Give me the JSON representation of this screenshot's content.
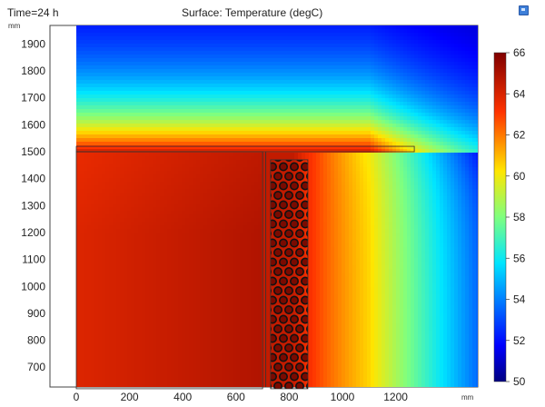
{
  "header": {
    "time_label": "Time=24 h",
    "plot_title": "Surface: Temperature (degC)",
    "x_unit": "mm",
    "y_unit": "mm"
  },
  "icons": {
    "corner": "window-icon"
  },
  "chart_data": {
    "type": "heatmap",
    "title": "Surface: Temperature (degC)",
    "annotation": "Time=24 h",
    "xlabel": "mm",
    "ylabel": "mm",
    "xlim": [
      -80,
      1500
    ],
    "ylim": [
      620,
      1960
    ],
    "x_ticks": [
      0,
      200,
      400,
      600,
      800,
      1000,
      1200
    ],
    "y_ticks": [
      700,
      800,
      900,
      1000,
      1100,
      1200,
      1300,
      1400,
      1500,
      1600,
      1700,
      1800,
      1900
    ],
    "colorbar": {
      "min": 50,
      "max": 66,
      "ticks": [
        50,
        52,
        54,
        56,
        58,
        60,
        62,
        64,
        66
      ],
      "colormap": "rainbow"
    },
    "domain": {
      "x": [
        0,
        1500
      ],
      "y": [
        620,
        1960
      ]
    },
    "regions": [
      {
        "name": "tank",
        "x": [
          0,
          700
        ],
        "y": [
          620,
          1500
        ],
        "temp": 64.5
      },
      {
        "name": "lid",
        "x": [
          0,
          1270
        ],
        "y": [
          1500,
          1520
        ],
        "temp": 63
      },
      {
        "name": "pcm-tube-bundle",
        "x": [
          730,
          870
        ],
        "y": [
          620,
          1470
        ],
        "temp": 65
      }
    ],
    "field_samples": [
      {
        "x": 100,
        "y": 1900,
        "temp": 51
      },
      {
        "x": 300,
        "y": 1600,
        "temp": 61.5
      },
      {
        "x": 350,
        "y": 1000,
        "temp": 64.5
      },
      {
        "x": 1000,
        "y": 1000,
        "temp": 61
      },
      {
        "x": 1400,
        "y": 900,
        "temp": 54
      },
      {
        "x": 1400,
        "y": 1900,
        "temp": 51
      }
    ]
  }
}
